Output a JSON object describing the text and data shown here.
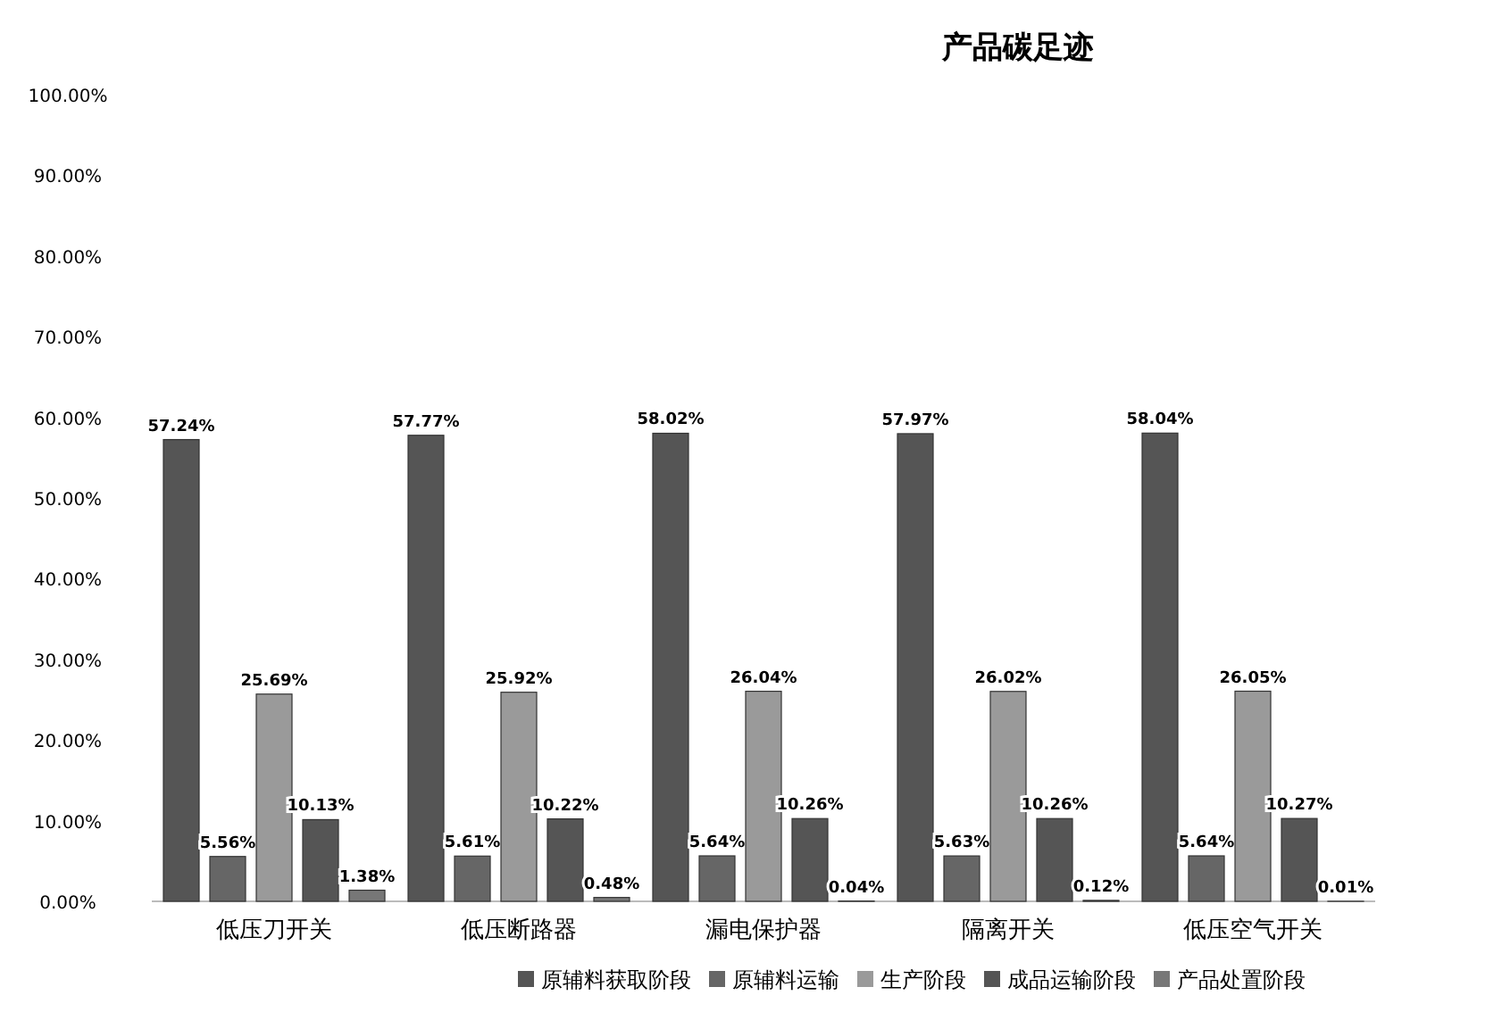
{
  "chart_data": {
    "type": "bar",
    "title": "产品碳足迹",
    "categories": [
      "低压刀开关",
      "低压断路器",
      "漏电保护器",
      "隔离开关",
      "低压空气开关"
    ],
    "series": [
      {
        "name": "原辅料获取阶段",
        "color": "#555555",
        "values": [
          57.24,
          57.77,
          58.02,
          57.97,
          58.04
        ]
      },
      {
        "name": "原辅料运输",
        "color": "#666666",
        "values": [
          5.56,
          5.61,
          5.64,
          5.63,
          5.64
        ]
      },
      {
        "name": "生产阶段",
        "color": "#9a9a9a",
        "values": [
          25.69,
          25.92,
          26.04,
          26.02,
          26.05
        ]
      },
      {
        "name": "成品运输阶段",
        "color": "#555555",
        "values": [
          10.13,
          10.22,
          10.26,
          10.26,
          10.27
        ]
      },
      {
        "name": "产品处置阶段",
        "color": "#777777",
        "values": [
          1.38,
          0.48,
          0.04,
          0.12,
          0.01
        ]
      }
    ],
    "ylim": [
      0,
      100
    ],
    "yticks": [
      {
        "value": 0,
        "label": "0.00%"
      },
      {
        "value": 10,
        "label": "10.00%"
      },
      {
        "value": 20,
        "label": "20.00%"
      },
      {
        "value": 30,
        "label": "30.00%"
      },
      {
        "value": 40,
        "label": "40.00%"
      },
      {
        "value": 50,
        "label": "50.00%"
      },
      {
        "value": 60,
        "label": "60.00%"
      },
      {
        "value": 70,
        "label": "70.00%"
      },
      {
        "value": 80,
        "label": "80.00%"
      },
      {
        "value": 90,
        "label": "90.00%"
      },
      {
        "value": 100,
        "label": "100.00%"
      }
    ],
    "value_labels": [
      [
        "57.24%",
        "57.77%",
        "58.02%",
        "57.97%",
        "58.04%"
      ],
      [
        "5.56%",
        "5.61%",
        "5.64%",
        "5.63%",
        "5.64%"
      ],
      [
        "25.69%",
        "25.92%",
        "26.04%",
        "26.02%",
        "26.05%"
      ],
      [
        "10.13%",
        "10.22%",
        "10.26%",
        "10.26%",
        "10.27%"
      ],
      [
        "1.38%",
        "0.48%",
        "0.04%",
        "0.12%",
        "0.01%"
      ]
    ],
    "legend": "bottom",
    "grid": false
  }
}
